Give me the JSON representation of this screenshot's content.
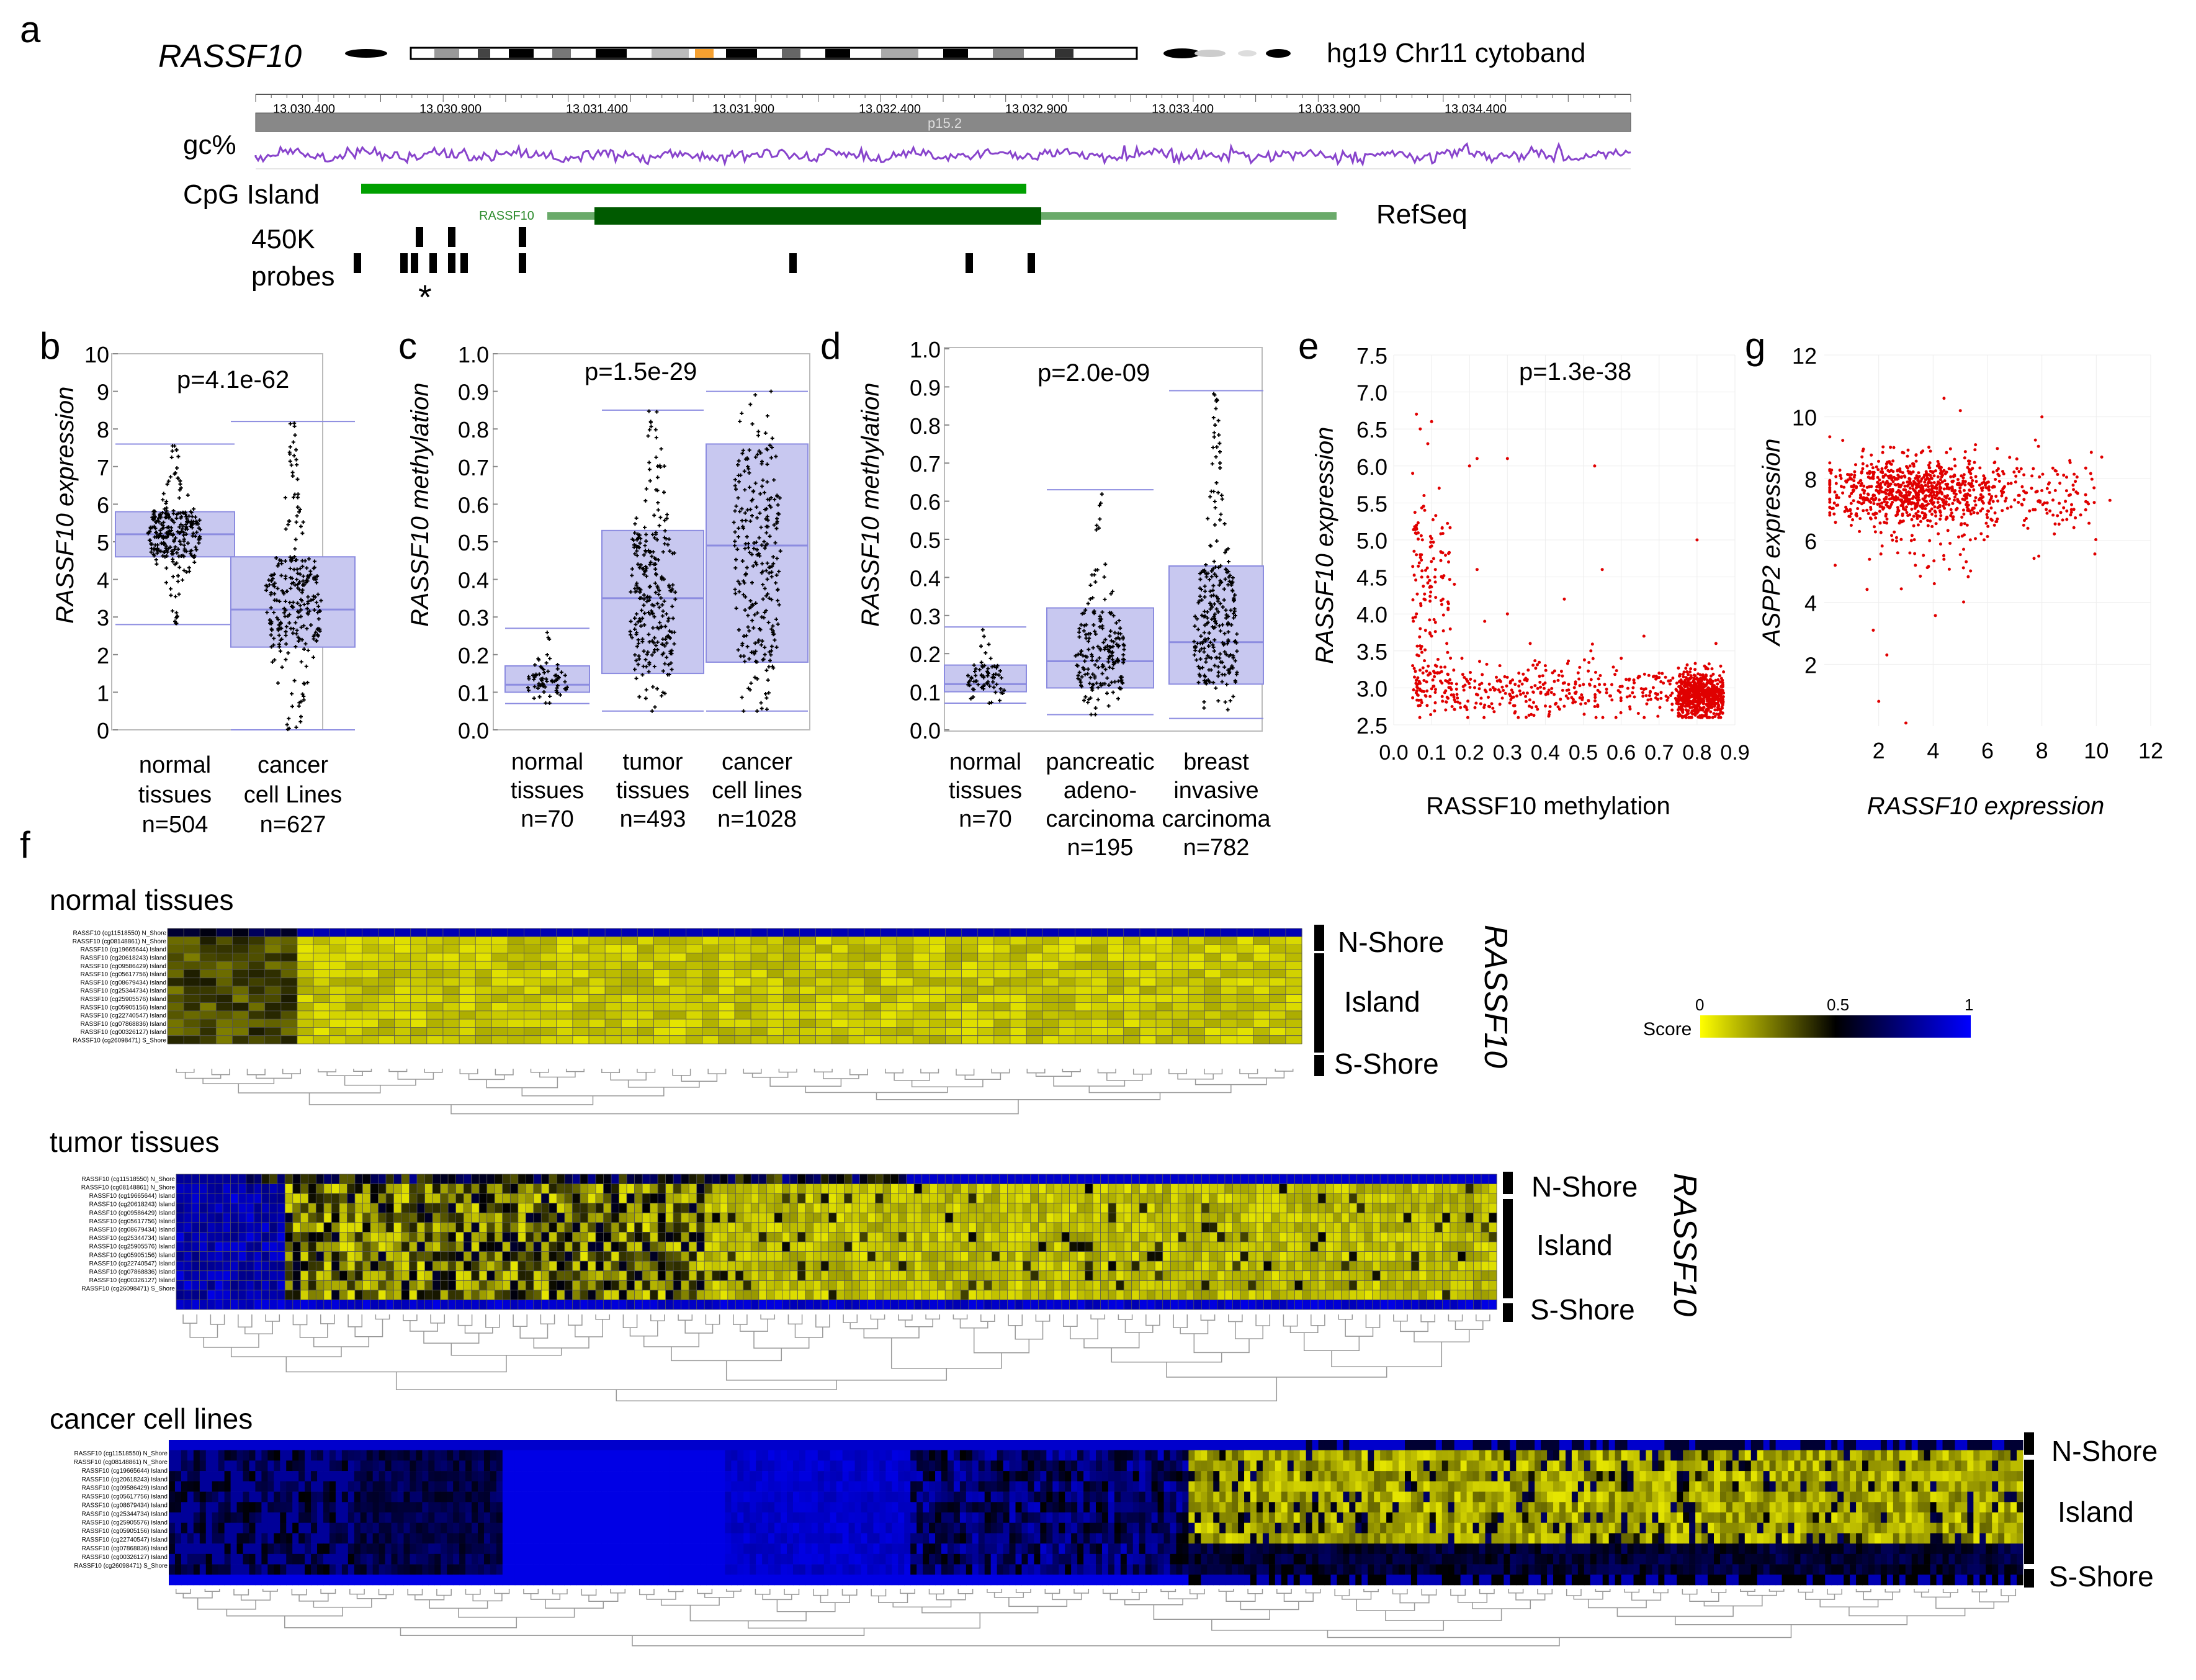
{
  "panel_letters": {
    "a": "a",
    "b": "b",
    "c": "c",
    "d": "d",
    "e": "e",
    "f": "f",
    "g": "g"
  },
  "panel_a": {
    "gene": "RASSF10",
    "cytoband_label": "hg19 Chr11 cytoband",
    "ruler_ticks": [
      "13,030,400",
      "13,030,900",
      "13,031,400",
      "13,031,900",
      "13,032,400",
      "13,032,900",
      "13,033,400",
      "13,033,900",
      "13,034,400"
    ],
    "band": "p15.2",
    "gc_label": "gc%",
    "cpg_label": "CpG Island",
    "refseq_label": "RefSeq",
    "refseq_gene": "RASSF10",
    "probes_label_1": "450K",
    "probes_label_2": "probes",
    "star": "*"
  },
  "panel_b": {
    "pvalue": "p=4.1e-62",
    "ylabel": "RASSF10 expression",
    "yticks": [
      "0",
      "1",
      "2",
      "3",
      "4",
      "5",
      "6",
      "7",
      "8",
      "9",
      "10"
    ],
    "groups": [
      {
        "l1": "normal",
        "l2": "tissues",
        "n": "n=504"
      },
      {
        "l1": "cancer",
        "l2": "cell Lines",
        "n": "n=627"
      }
    ]
  },
  "panel_c": {
    "pvalue": "p=1.5e-29",
    "ylabel": "RASSF10 methylation",
    "yticks": [
      "0.0",
      "0.1",
      "0.2",
      "0.3",
      "0.4",
      "0.5",
      "0.6",
      "0.7",
      "0.8",
      "0.9",
      "1.0"
    ],
    "groups": [
      {
        "l1": "normal",
        "l2": "tissues",
        "n": "n=70"
      },
      {
        "l1": "tumor",
        "l2": "tissues",
        "n": "n=493"
      },
      {
        "l1": "cancer",
        "l2": "cell lines",
        "n": "n=1028"
      }
    ]
  },
  "panel_d": {
    "pvalue": "p=2.0e-09",
    "ylabel": "RASSF10 methylation",
    "yticks": [
      "0.0",
      "0.1",
      "0.2",
      "0.3",
      "0.4",
      "0.5",
      "0.6",
      "0.7",
      "0.8",
      "0.9",
      "1.0"
    ],
    "groups": [
      {
        "l1": "normal",
        "l2": "tissues",
        "l3": "n=70"
      },
      {
        "l1": "pancreatic",
        "l2": "adeno-",
        "l3": "carcinoma",
        "l4": "n=195"
      },
      {
        "l1": "breast",
        "l2": "invasive",
        "l3": "carcinoma",
        "l4": "n=782"
      }
    ]
  },
  "panel_e": {
    "pvalue": "p=1.3e-38",
    "ylabel": "RASSF10 expression",
    "xlabel": "RASSF10 methylation",
    "yticks": [
      "2.5",
      "3.0",
      "3.5",
      "4.0",
      "4.5",
      "5.0",
      "5.5",
      "6.0",
      "6.5",
      "7.0",
      "7.5"
    ],
    "xticks": [
      "0.0",
      "0.1",
      "0.2",
      "0.3",
      "0.4",
      "0.5",
      "0.6",
      "0.7",
      "0.8",
      "0.9"
    ]
  },
  "panel_g": {
    "ylabel": "ASPP2 expression",
    "xlabel": "RASSF10 expression",
    "yticks": [
      "2",
      "4",
      "6",
      "8",
      "10",
      "12"
    ],
    "xticks": [
      "2",
      "4",
      "6",
      "8",
      "10",
      "12"
    ]
  },
  "panel_f": {
    "row_labels": [
      "RASSF10 (cg11518550) N_Shore",
      "RASSF10 (cg08148861) N_Shore",
      "RASSF10 (cg19665644) Island",
      "RASSF10 (cg20618243) Island",
      "RASSF10 (cg09586429) Island",
      "RASSF10 (cg05617756) Island",
      "RASSF10 (cg08679434) Island",
      "RASSF10 (cg25344734) Island",
      "RASSF10 (cg25905576) Island",
      "RASSF10 (cg05905156) Island",
      "RASSF10 (cg22740547) Island",
      "RASSF10 (cg07868836) Island",
      "RASSF10 (cg00326127) Island",
      "RASSF10 (cg26098471) S_Shore"
    ],
    "sections": [
      "normal tissues",
      "tumor tissues",
      "cancer cell lines"
    ],
    "n_shore": "N-Shore",
    "island": "Island",
    "s_shore": "S-Shore",
    "gene": "RASSF10",
    "score_label": "Score",
    "score_ticks": [
      "0",
      "0.5",
      "1"
    ]
  },
  "colors": {
    "yellow": "#ffff00",
    "blue": "#0000ff",
    "black": "#000000",
    "scatter_red": "#e00000",
    "box_fill": "#c8c8f0",
    "box_line": "#8c8ce0"
  },
  "chart_data": [
    {
      "type": "box",
      "title": "b",
      "ylabel": "RASSF10 expression",
      "ylim": [
        0,
        10
      ],
      "categories": [
        "normal tissues",
        "cancer cell Lines"
      ],
      "series": [
        {
          "name": "normal tissues",
          "q1": 4.6,
          "median": 5.2,
          "q3": 5.8,
          "whisker_low": 2.8,
          "whisker_high": 7.6,
          "n": 504
        },
        {
          "name": "cancer cell Lines",
          "q1": 2.2,
          "median": 3.2,
          "q3": 4.6,
          "whisker_low": 0.0,
          "whisker_high": 8.2,
          "n": 627
        }
      ]
    },
    {
      "type": "box",
      "title": "c",
      "ylabel": "RASSF10 methylation",
      "ylim": [
        0,
        1
      ],
      "categories": [
        "normal tissues",
        "tumor tissues",
        "cancer cell lines"
      ],
      "series": [
        {
          "name": "normal tissues",
          "q1": 0.1,
          "median": 0.12,
          "q3": 0.17,
          "whisker_low": 0.07,
          "whisker_high": 0.27,
          "n": 70
        },
        {
          "name": "tumor tissues",
          "q1": 0.15,
          "median": 0.35,
          "q3": 0.53,
          "whisker_low": 0.05,
          "whisker_high": 0.85,
          "n": 493
        },
        {
          "name": "cancer cell lines",
          "q1": 0.18,
          "median": 0.49,
          "q3": 0.76,
          "whisker_low": 0.05,
          "whisker_high": 0.9,
          "n": 1028
        }
      ]
    },
    {
      "type": "box",
      "title": "d",
      "ylabel": "RASSF10 methylation",
      "ylim": [
        0,
        1
      ],
      "categories": [
        "normal tissues",
        "pancreatic adenocarcinoma",
        "breast invasive carcinoma"
      ],
      "series": [
        {
          "name": "normal tissues",
          "q1": 0.1,
          "median": 0.12,
          "q3": 0.17,
          "whisker_low": 0.07,
          "whisker_high": 0.27,
          "n": 70
        },
        {
          "name": "pancreatic adenocarcinoma",
          "q1": 0.11,
          "median": 0.18,
          "q3": 0.32,
          "whisker_low": 0.04,
          "whisker_high": 0.63,
          "n": 195
        },
        {
          "name": "breast invasive carcinoma",
          "q1": 0.12,
          "median": 0.23,
          "q3": 0.43,
          "whisker_low": 0.03,
          "whisker_high": 0.89,
          "n": 782
        }
      ]
    },
    {
      "type": "scatter",
      "title": "e",
      "xlabel": "RASSF10 methylation",
      "ylabel": "RASSF10 expression",
      "xlim": [
        0,
        0.9
      ],
      "ylim": [
        2.5,
        7.5
      ],
      "points": [
        [
          0.06,
          6.7
        ],
        [
          0.07,
          6.5
        ],
        [
          0.09,
          6.3
        ],
        [
          0.1,
          6.6
        ],
        [
          0.05,
          5.9
        ],
        [
          0.08,
          5.6
        ],
        [
          0.12,
          5.7
        ],
        [
          0.2,
          6.0
        ],
        [
          0.22,
          6.1
        ],
        [
          0.3,
          6.1
        ],
        [
          0.53,
          6.0
        ],
        [
          0.06,
          5.2
        ],
        [
          0.07,
          4.8
        ],
        [
          0.09,
          4.5
        ],
        [
          0.08,
          4.2
        ],
        [
          0.11,
          4.6
        ],
        [
          0.06,
          4.0
        ],
        [
          0.07,
          3.8
        ],
        [
          0.1,
          3.7
        ],
        [
          0.13,
          4.2
        ],
        [
          0.16,
          4.4
        ],
        [
          0.22,
          4.6
        ],
        [
          0.24,
          3.9
        ],
        [
          0.3,
          4.0
        ],
        [
          0.36,
          3.6
        ],
        [
          0.45,
          4.2
        ],
        [
          0.52,
          3.5
        ],
        [
          0.55,
          4.6
        ],
        [
          0.6,
          3.4
        ],
        [
          0.66,
          3.7
        ],
        [
          0.8,
          5.0
        ],
        [
          0.7,
          3.2
        ],
        [
          0.85,
          3.6
        ],
        [
          0.4,
          3.3
        ],
        [
          0.18,
          3.4
        ],
        [
          0.14,
          3.6
        ],
        [
          0.05,
          3.3
        ],
        [
          0.08,
          3.1
        ],
        [
          0.28,
          3.3
        ],
        [
          0.33,
          3.2
        ]
      ]
    },
    {
      "type": "scatter",
      "title": "g",
      "xlabel": "RASSF10 expression",
      "ylabel": "ASPP2 expression",
      "xlim": [
        0,
        12
      ],
      "ylim": [
        0,
        12
      ],
      "points": [
        [
          1.8,
          3.1
        ],
        [
          2.0,
          0.8
        ],
        [
          2.3,
          2.3
        ],
        [
          3.0,
          0.1
        ],
        [
          4.4,
          10.6
        ],
        [
          5.0,
          10.2
        ],
        [
          8.0,
          10.0
        ],
        [
          0.4,
          5.2
        ],
        [
          2.7,
          5.6
        ],
        [
          3.2,
          6.0
        ],
        [
          10.5,
          7.3
        ],
        [
          10.2,
          8.7
        ]
      ]
    }
  ]
}
